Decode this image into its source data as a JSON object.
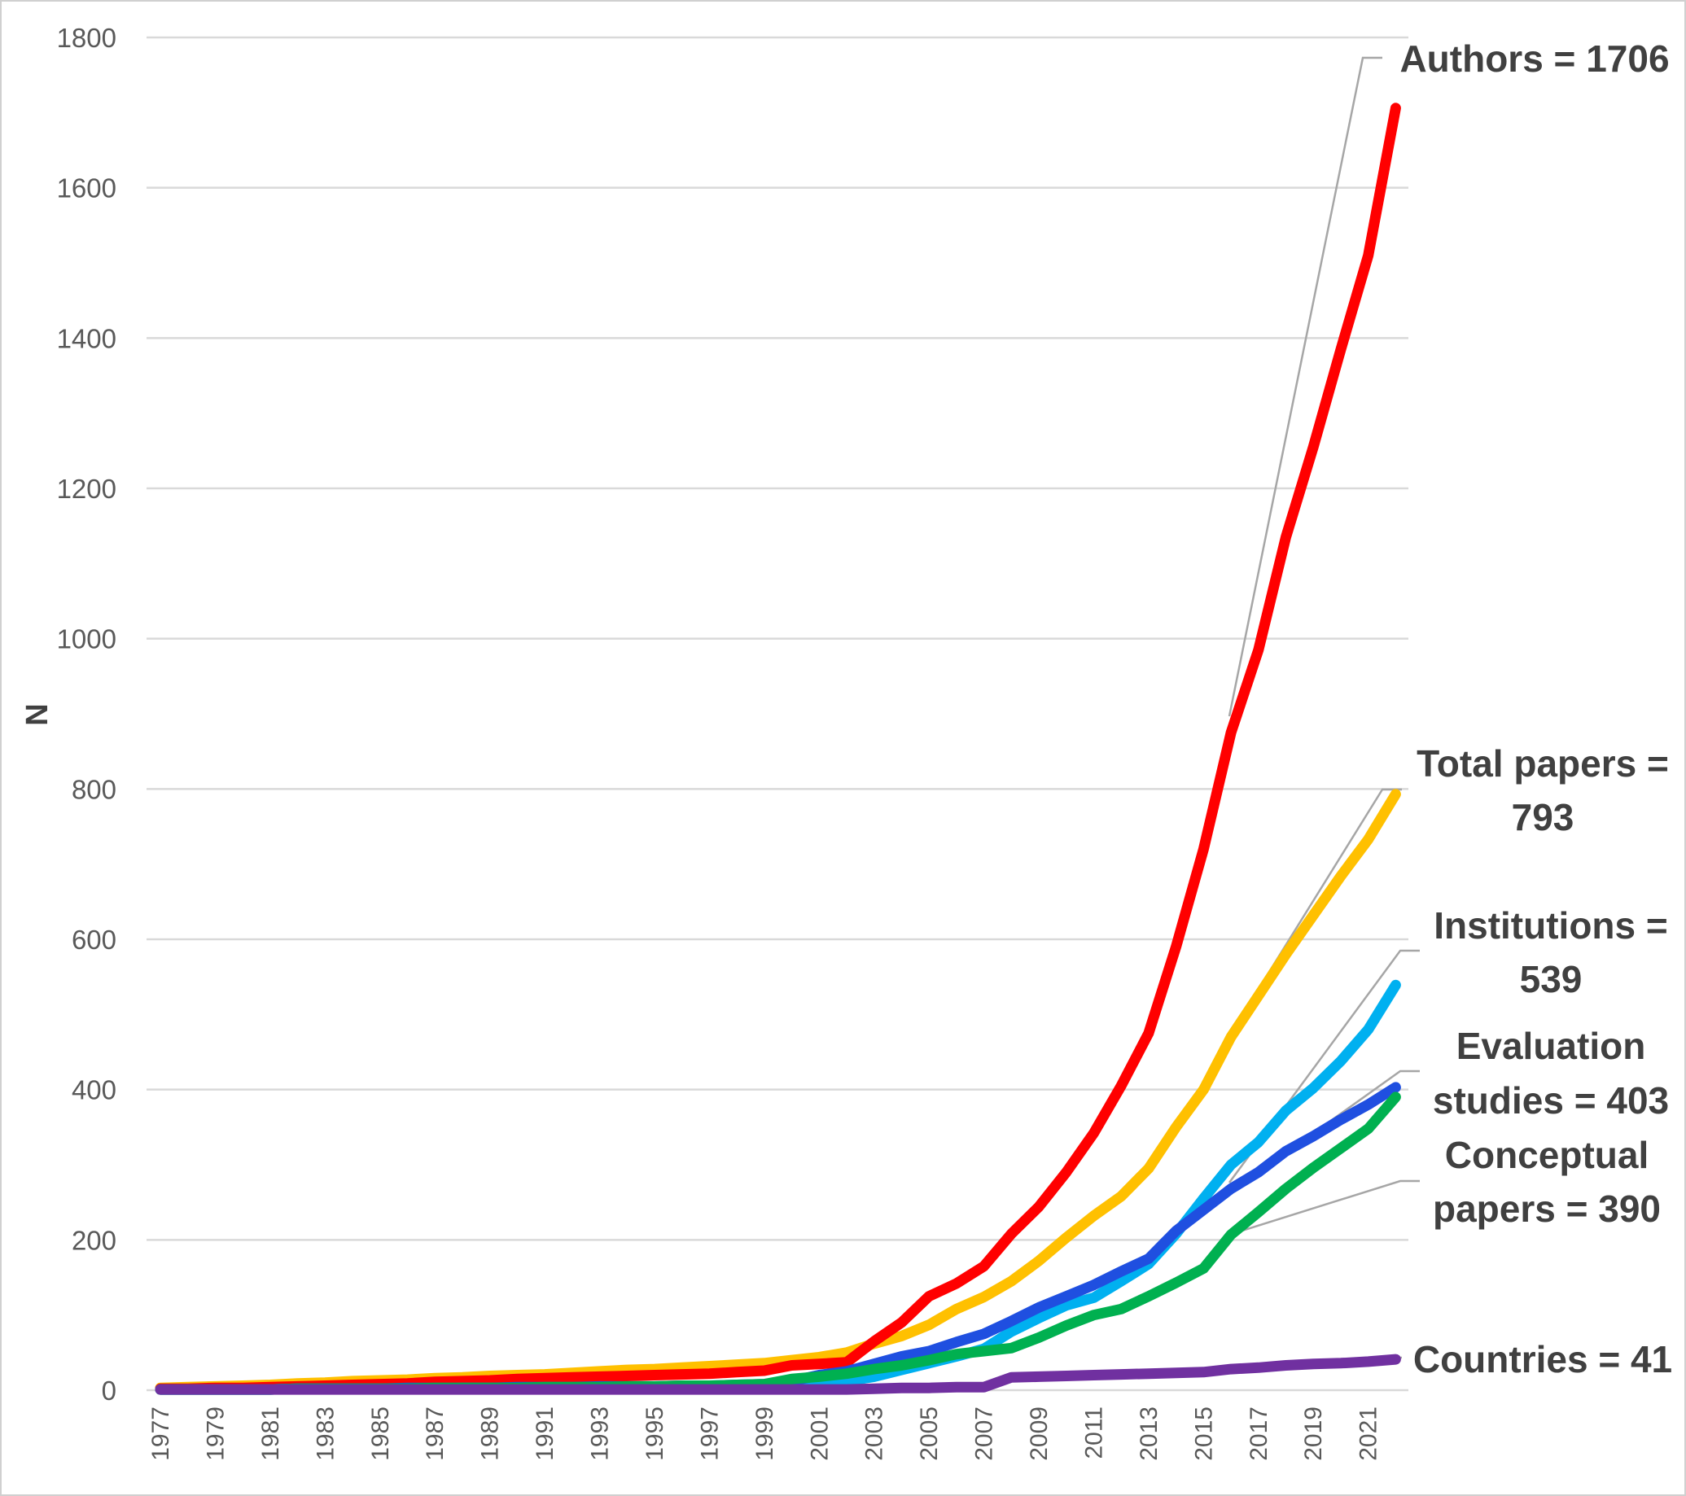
{
  "chart_data": {
    "type": "line",
    "title": "",
    "xlabel": "",
    "ylabel": "N",
    "ylim": [
      0,
      1800
    ],
    "yticks": [
      0,
      200,
      400,
      600,
      800,
      1000,
      1200,
      1400,
      1600,
      1800
    ],
    "x": [
      1977,
      1978,
      1979,
      1980,
      1981,
      1982,
      1983,
      1984,
      1985,
      1986,
      1987,
      1988,
      1989,
      1990,
      1991,
      1992,
      1993,
      1994,
      1995,
      1996,
      1997,
      1998,
      1999,
      2000,
      2001,
      2002,
      2003,
      2004,
      2005,
      2006,
      2007,
      2008,
      2009,
      2010,
      2011,
      2012,
      2013,
      2014,
      2015,
      2016,
      2017,
      2018,
      2019,
      2020,
      2021,
      2022
    ],
    "xtick_labels": [
      "1977",
      "1979",
      "1981",
      "1983",
      "1985",
      "1987",
      "1989",
      "1991",
      "1993",
      "1995",
      "1997",
      "1999",
      "2001",
      "2003",
      "2005",
      "2007",
      "2009",
      "2011",
      "2013",
      "2015",
      "2017",
      "2019",
      "2021"
    ],
    "grid": true,
    "series": [
      {
        "name": "Total papers",
        "label_lines": [
          "Total papers =",
          "793"
        ],
        "color": "#ffc000",
        "values": [
          3,
          4,
          5,
          6,
          7,
          9,
          10,
          12,
          13,
          14,
          16,
          17,
          19,
          20,
          21,
          23,
          25,
          27,
          28,
          30,
          32,
          34,
          36,
          40,
          44,
          50,
          62,
          72,
          87,
          108,
          124,
          145,
          172,
          203,
          232,
          258,
          295,
          350,
          400,
          470,
          525,
          580,
          632,
          684,
          733,
          793
        ]
      },
      {
        "name": "Authors",
        "label_lines": [
          "Authors = 1706"
        ],
        "color": "#ff0000",
        "values": [
          2,
          2,
          3,
          3,
          4,
          5,
          6,
          7,
          8,
          9,
          11,
          12,
          13,
          15,
          16,
          17,
          18,
          19,
          20,
          21,
          22,
          24,
          26,
          33,
          35,
          37,
          65,
          90,
          125,
          142,
          165,
          208,
          244,
          290,
          342,
          405,
          475,
          590,
          720,
          875,
          985,
          1135,
          1255,
          1385,
          1510,
          1706
        ]
      },
      {
        "name": "Institutions",
        "label_lines": [
          "Institutions =",
          "539"
        ],
        "color": "#00b0f0",
        "values": [
          1,
          1,
          1,
          1,
          1,
          2,
          2,
          2,
          2,
          2,
          2,
          3,
          3,
          3,
          3,
          3,
          4,
          4,
          4,
          5,
          5,
          6,
          6,
          8,
          10,
          12,
          18,
          27,
          36,
          45,
          55,
          78,
          96,
          113,
          123,
          145,
          168,
          208,
          255,
          300,
          330,
          372,
          402,
          438,
          480,
          539
        ]
      },
      {
        "name": "Evaluation studies",
        "label_lines": [
          "Evaluation",
          "studies = 403"
        ],
        "color": "#1f4fe0",
        "values": [
          1,
          1,
          1,
          1,
          1,
          2,
          2,
          2,
          2,
          3,
          3,
          3,
          3,
          4,
          4,
          4,
          5,
          5,
          5,
          6,
          6,
          7,
          8,
          12,
          20,
          25,
          35,
          45,
          52,
          64,
          75,
          92,
          110,
          125,
          140,
          158,
          175,
          212,
          240,
          268,
          290,
          318,
          338,
          360,
          380,
          403
        ]
      },
      {
        "name": "Conceptual papers",
        "label_lines": [
          "Conceptual",
          "papers = 390"
        ],
        "color": "#00b050",
        "values": [
          1,
          1,
          1,
          1,
          1,
          2,
          2,
          2,
          2,
          2,
          3,
          3,
          3,
          3,
          4,
          4,
          4,
          5,
          5,
          6,
          6,
          7,
          8,
          15,
          18,
          22,
          28,
          33,
          40,
          48,
          52,
          56,
          70,
          86,
          100,
          108,
          125,
          143,
          162,
          207,
          237,
          268,
          296,
          322,
          348,
          390
        ]
      },
      {
        "name": "Countries",
        "label_lines": [
          "Countries = 41"
        ],
        "color": "#7030a0",
        "values": [
          1,
          1,
          1,
          1,
          1,
          1,
          1,
          1,
          1,
          1,
          1,
          1,
          1,
          1,
          1,
          1,
          1,
          1,
          1,
          1,
          1,
          1,
          1,
          1,
          1,
          1,
          2,
          3,
          3,
          4,
          4,
          17,
          18,
          19,
          20,
          21,
          22,
          23,
          24,
          28,
          30,
          33,
          35,
          36,
          38,
          41
        ]
      }
    ]
  }
}
